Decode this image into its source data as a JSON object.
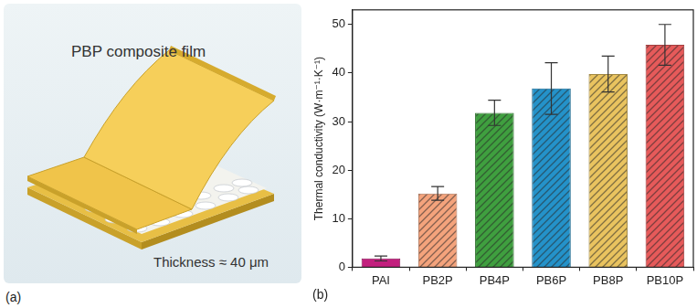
{
  "panels": {
    "a": {
      "label": "(a)",
      "title": "PBP composite film",
      "annotation": "Thickness ≈ 40 μm"
    },
    "b": {
      "label": "(b)"
    }
  },
  "chart_data": {
    "type": "bar",
    "y_label": "Thermal conductivity (W·m⁻¹·K⁻¹)",
    "categories": [
      "PAI",
      "PB2P",
      "PB4P",
      "PB6P",
      "PB8P",
      "PB10P"
    ],
    "values": [
      1.8,
      15.2,
      31.8,
      36.8,
      39.8,
      45.8
    ],
    "errors": [
      0.5,
      1.4,
      2.6,
      5.3,
      3.7,
      4.2
    ],
    "colors": [
      "#c2207e",
      "#f4a37c",
      "#3f9f3f",
      "#2492c9",
      "#e9c35f",
      "#e65a5a"
    ],
    "ylim": [
      0,
      53
    ],
    "yticks": [
      0,
      10,
      20,
      30,
      40,
      50
    ],
    "grid": false
  }
}
